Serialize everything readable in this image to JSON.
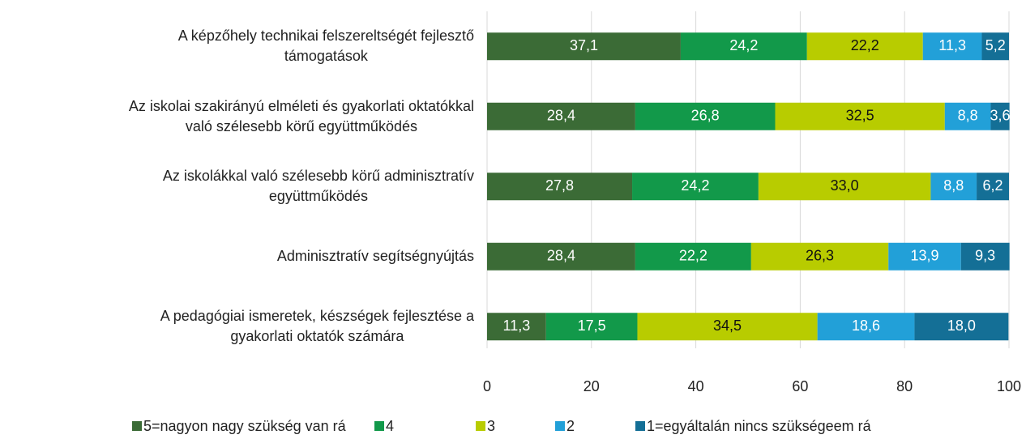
{
  "chart_data": {
    "type": "stacked-bar-horizontal",
    "categories": [
      "A képzőhely technikai felszereltségét fejlesztő\ntámogatások",
      "Az iskolai szakirányú elméleti és gyakorlati oktatókkal\nvaló szélesebb körű együttműködés",
      "Az iskolákkal való szélesebb körű adminisztratív\negyüttműködés",
      "Adminisztratív segítségnyújtás",
      "A pedagógiai ismeretek, készségek fejlesztése a\ngyakorlati oktatók számára"
    ],
    "series": [
      {
        "name": "5=nagyon nagy szükség van rá",
        "color": "#3b6b36",
        "values": [
          37.1,
          28.4,
          27.8,
          28.4,
          11.3
        ],
        "value_labels": [
          "37,1",
          "28,4",
          "27,8",
          "28,4",
          "11,3"
        ]
      },
      {
        "name": "4",
        "color": "#12994a",
        "values": [
          24.2,
          26.8,
          24.2,
          22.2,
          17.5
        ],
        "value_labels": [
          "24,2",
          "26,8",
          "24,2",
          "22,2",
          "17,5"
        ]
      },
      {
        "name": "3",
        "color": "#b8cc00",
        "values": [
          22.2,
          32.5,
          33.0,
          26.3,
          34.5
        ],
        "value_labels": [
          "22,2",
          "32,5",
          "33,0",
          "26,3",
          "34,5"
        ]
      },
      {
        "name": "2",
        "color": "#22a0d8",
        "values": [
          11.3,
          8.8,
          8.8,
          13.9,
          18.6
        ],
        "value_labels": [
          "11,3",
          "8,8",
          "8,8",
          "13,9",
          "18,6"
        ]
      },
      {
        "name": "1=egyáltalán nincs szükségeem rá",
        "color": "#146f96",
        "values": [
          5.2,
          3.6,
          6.2,
          9.3,
          18.0
        ],
        "value_labels": [
          "5,2",
          "3,6",
          "6,2",
          "9,3",
          "18,0"
        ]
      }
    ],
    "xlim": [
      0,
      100
    ],
    "xticks": [
      0,
      20,
      40,
      60,
      80,
      100
    ],
    "grid": true,
    "legend": "bottom"
  }
}
